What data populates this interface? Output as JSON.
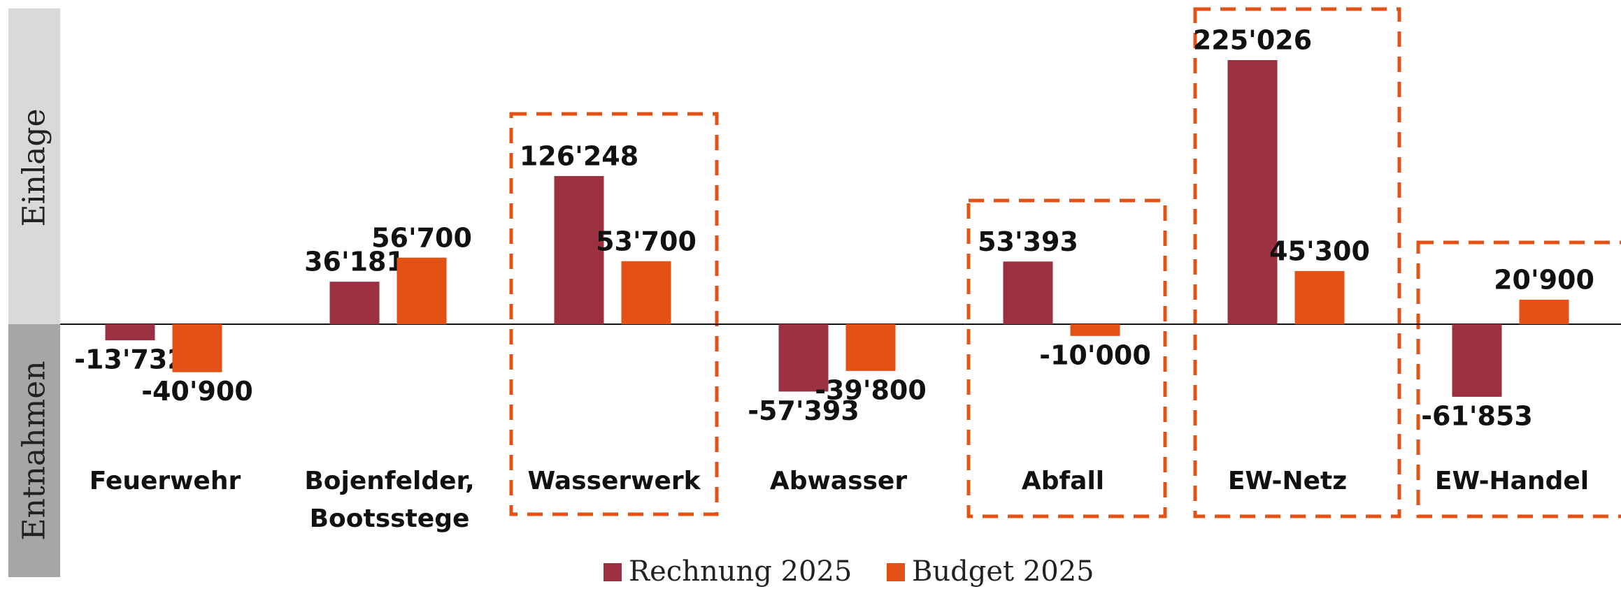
{
  "chart_data": {
    "type": "bar",
    "side_labels": [
      "Einlage",
      "Entnahmen"
    ],
    "categories": [
      "Feuerwehr",
      "Bojenfelder, Bootsstege",
      "Wasserwerk",
      "Abwasser",
      "Abfall",
      "EW-Netz",
      "EW-Handel"
    ],
    "series": [
      {
        "name": "Rechnung 2025",
        "color": "#9b3040",
        "values": [
          -13732,
          36181,
          126248,
          -57393,
          53393,
          225026,
          -61853
        ],
        "value_labels": [
          "-13'732",
          "36'181",
          "126'248",
          "-57'393",
          "53'393",
          "225'026",
          "-61'853"
        ]
      },
      {
        "name": "Budget 2025",
        "color": "#e35214",
        "values": [
          -40900,
          56700,
          53700,
          -39800,
          -10000,
          45300,
          20900
        ],
        "value_labels": [
          "-40'900",
          "56'700",
          "53'700",
          "-39'800",
          "-10'000",
          "45'300",
          "20'900"
        ]
      }
    ]
  }
}
